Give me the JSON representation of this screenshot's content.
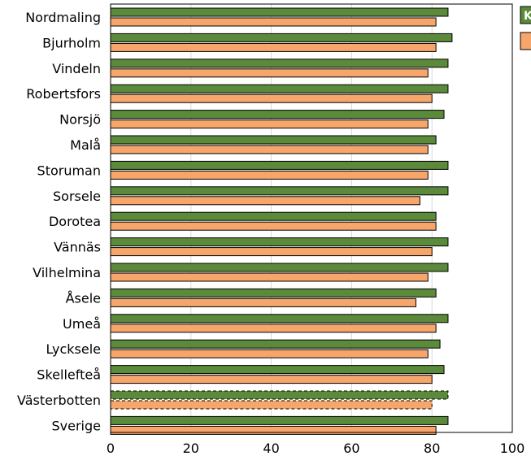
{
  "chart_data": {
    "type": "bar",
    "orientation": "horizontal",
    "categories": [
      "Nordmaling",
      "Bjurholm",
      "Vindeln",
      "Robertsfors",
      "Norsjö",
      "Malå",
      "Storuman",
      "Sorsele",
      "Dorotea",
      "Vännäs",
      "Vilhelmina",
      "Åsele",
      "Umeå",
      "Lycksele",
      "Skellefteå",
      "Västerbotten",
      "Sverige"
    ],
    "series": [
      {
        "color": "#5a8a3a",
        "values": [
          84,
          85,
          84,
          84,
          83,
          81,
          84,
          84,
          81,
          84,
          84,
          81,
          84,
          82,
          83,
          84,
          84
        ]
      },
      {
        "color": "#f6a66a",
        "values": [
          81,
          81,
          79,
          80,
          79,
          79,
          79,
          77,
          81,
          80,
          79,
          76,
          81,
          79,
          80,
          80,
          81
        ]
      }
    ],
    "xlim": [
      0,
      100
    ],
    "xticks": [
      "0",
      "20",
      "40",
      "60",
      "80",
      "100"
    ],
    "grid": true,
    "dashed_category": "Västerbotten",
    "legend": {
      "position": "top-right",
      "entries": [
        "K",
        ""
      ]
    }
  }
}
